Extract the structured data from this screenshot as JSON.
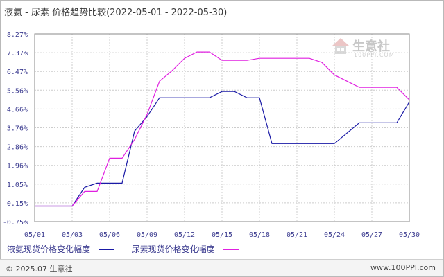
{
  "title": "液氨 - 尿素 价格趋势比较(2022-05-01 - 2022-05-30)",
  "watermark": {
    "name": "生意社",
    "sub": "100PPI.COM"
  },
  "footer": {
    "copyright": "© 2025.07 生意社",
    "site": "www.100PPI.com"
  },
  "colors": {
    "ammonia": "#1a1aa6",
    "urea": "#e020e0",
    "grid": "#cccccc",
    "axis": "#888888"
  },
  "chart_data": {
    "type": "line",
    "x_tick_labels": [
      "05/01",
      "05/03",
      "05/06",
      "05/09",
      "05/12",
      "05/15",
      "05/18",
      "05/21",
      "05/24",
      "05/27",
      "05/30"
    ],
    "y_tick_labels": [
      "8.27%",
      "7.37%",
      "6.47%",
      "5.56%",
      "4.66%",
      "3.76%",
      "2.86%",
      "1.96%",
      "1.05%",
      "0.15%",
      "-0.75%"
    ],
    "ylim": [
      -0.75,
      8.27
    ],
    "grid": true,
    "legend_position": "bottom-left",
    "series": [
      {
        "name": "液氨现货价格变化幅度",
        "color": "#1a1aa6",
        "values": [
          0,
          0,
          0,
          0,
          0.9,
          1.1,
          1.1,
          1.1,
          3.6,
          4.3,
          5.2,
          5.2,
          5.2,
          5.2,
          5.2,
          5.5,
          5.5,
          5.2,
          5.2,
          3.0,
          3.0,
          3.0,
          3.0,
          3.0,
          3.0,
          3.5,
          4.0,
          4.0,
          4.0,
          4.0,
          5.0
        ]
      },
      {
        "name": "尿素现货价格变化幅度",
        "color": "#e020e0",
        "values": [
          0,
          0,
          0,
          0,
          0.7,
          0.7,
          2.3,
          2.3,
          3.2,
          4.4,
          6.0,
          6.5,
          7.1,
          7.4,
          7.4,
          7.0,
          7.0,
          7.0,
          7.1,
          7.1,
          7.1,
          7.1,
          7.1,
          6.9,
          6.3,
          6.0,
          5.7,
          5.7,
          5.7,
          5.7,
          5.1
        ]
      }
    ]
  }
}
